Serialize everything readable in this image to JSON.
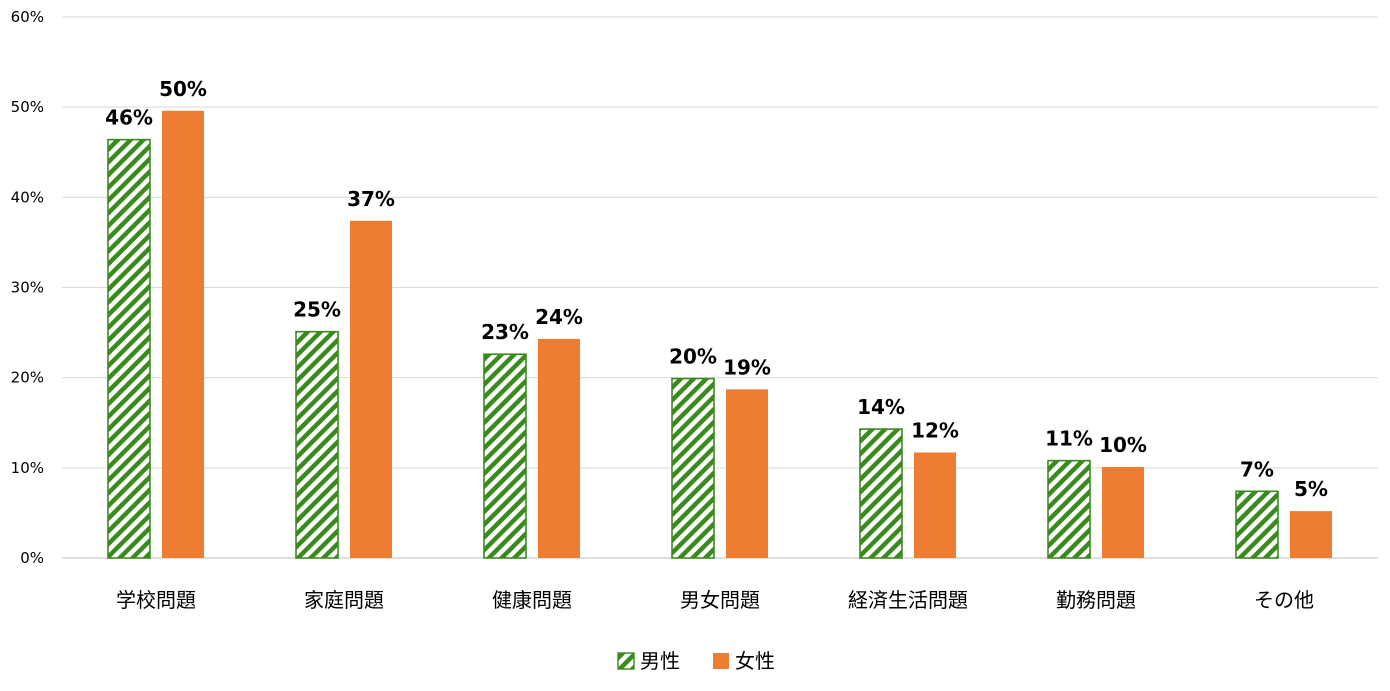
{
  "chart_data": {
    "type": "bar",
    "categories": [
      "学校問題",
      "家庭問題",
      "健康問題",
      "男女問題",
      "経済生活問題",
      "勤務問題",
      "その他"
    ],
    "series": [
      {
        "name": "男性",
        "values": [
          46.4,
          25.1,
          22.6,
          19.9,
          14.3,
          10.8,
          7.4
        ],
        "labels": [
          "46%",
          "25%",
          "23%",
          "20%",
          "14%",
          "11%",
          "7%"
        ],
        "color": "#3a8a1e",
        "pattern": "diagonal-stripes"
      },
      {
        "name": "女性",
        "values": [
          49.6,
          37.4,
          24.3,
          18.7,
          11.7,
          10.1,
          5.2
        ],
        "labels": [
          "50%",
          "37%",
          "24%",
          "19%",
          "12%",
          "10%",
          "5%"
        ],
        "color": "#ed7d31",
        "pattern": "solid"
      }
    ],
    "ylim": [
      0,
      60
    ],
    "yticks": [
      "0%",
      "10%",
      "20%",
      "30%",
      "40%",
      "50%",
      "60%"
    ],
    "grid": true,
    "legend": "bottom-center"
  }
}
